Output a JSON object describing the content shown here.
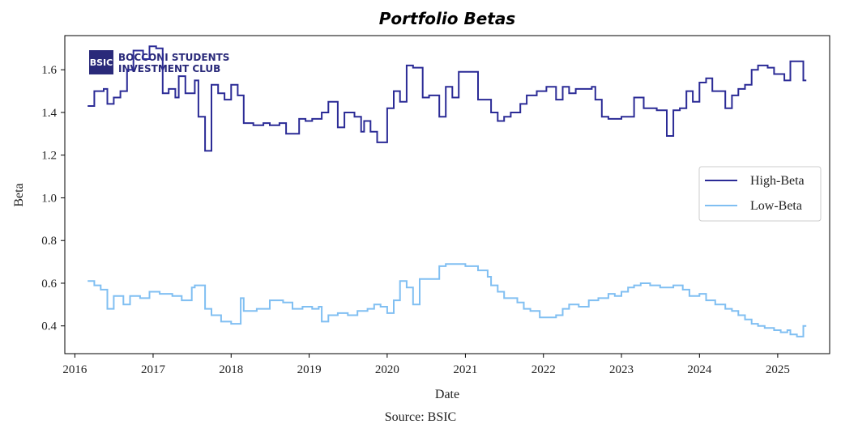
{
  "chart_data": {
    "type": "line",
    "title": "Portfolio Betas",
    "xlabel": "Date",
    "ylabel": "Beta",
    "source": "Source: BSIC",
    "logo": {
      "badge": "BSIC",
      "line1": "BOCCONI STUDENTS",
      "line2": "INVESTMENT CLUB"
    },
    "xlim": [
      "2015-11-15",
      "2025-09-01"
    ],
    "ylim": [
      0.27,
      1.76
    ],
    "x_ticks": [
      "2016",
      "2017",
      "2018",
      "2019",
      "2020",
      "2021",
      "2022",
      "2023",
      "2024",
      "2025"
    ],
    "y_ticks": [
      "0.4",
      "0.6",
      "0.8",
      "1.0",
      "1.2",
      "1.4",
      "1.6"
    ],
    "legend_position": "center-right",
    "grid": false,
    "series": [
      {
        "name": "High-Beta",
        "color": "#2b2b96",
        "points": [
          [
            "2016-03-01",
            1.43
          ],
          [
            "2016-04-01",
            1.5
          ],
          [
            "2016-05-15",
            1.51
          ],
          [
            "2016-06-01",
            1.44
          ],
          [
            "2016-07-01",
            1.47
          ],
          [
            "2016-08-01",
            1.5
          ],
          [
            "2016-09-01",
            1.6
          ],
          [
            "2016-10-01",
            1.69
          ],
          [
            "2016-11-15",
            1.65
          ],
          [
            "2016-12-15",
            1.71
          ],
          [
            "2017-01-15",
            1.7
          ],
          [
            "2017-02-15",
            1.49
          ],
          [
            "2017-03-15",
            1.51
          ],
          [
            "2017-04-15",
            1.47
          ],
          [
            "2017-05-01",
            1.57
          ],
          [
            "2017-06-01",
            1.49
          ],
          [
            "2017-07-15",
            1.55
          ],
          [
            "2017-08-01",
            1.38
          ],
          [
            "2017-09-01",
            1.22
          ],
          [
            "2017-10-01",
            1.53
          ],
          [
            "2017-11-01",
            1.49
          ],
          [
            "2017-12-01",
            1.46
          ],
          [
            "2018-01-01",
            1.53
          ],
          [
            "2018-02-01",
            1.48
          ],
          [
            "2018-03-01",
            1.35
          ],
          [
            "2018-04-15",
            1.34
          ],
          [
            "2018-06-01",
            1.35
          ],
          [
            "2018-07-01",
            1.34
          ],
          [
            "2018-08-15",
            1.35
          ],
          [
            "2018-09-15",
            1.3
          ],
          [
            "2018-11-15",
            1.37
          ],
          [
            "2018-12-15",
            1.36
          ],
          [
            "2019-01-15",
            1.37
          ],
          [
            "2019-03-01",
            1.4
          ],
          [
            "2019-04-01",
            1.45
          ],
          [
            "2019-05-15",
            1.33
          ],
          [
            "2019-06-15",
            1.4
          ],
          [
            "2019-08-01",
            1.38
          ],
          [
            "2019-09-01",
            1.31
          ],
          [
            "2019-09-15",
            1.36
          ],
          [
            "2019-10-15",
            1.31
          ],
          [
            "2019-11-15",
            1.26
          ],
          [
            "2020-01-01",
            1.42
          ],
          [
            "2020-02-01",
            1.5
          ],
          [
            "2020-03-01",
            1.45
          ],
          [
            "2020-04-01",
            1.62
          ],
          [
            "2020-05-01",
            1.61
          ],
          [
            "2020-06-15",
            1.47
          ],
          [
            "2020-07-15",
            1.48
          ],
          [
            "2020-09-01",
            1.38
          ],
          [
            "2020-10-01",
            1.52
          ],
          [
            "2020-11-01",
            1.47
          ],
          [
            "2020-12-01",
            1.59
          ],
          [
            "2021-03-01",
            1.46
          ],
          [
            "2021-05-01",
            1.4
          ],
          [
            "2021-06-01",
            1.36
          ],
          [
            "2021-07-01",
            1.38
          ],
          [
            "2021-08-01",
            1.4
          ],
          [
            "2021-09-15",
            1.44
          ],
          [
            "2021-10-15",
            1.48
          ],
          [
            "2021-12-01",
            1.5
          ],
          [
            "2022-01-15",
            1.52
          ],
          [
            "2022-03-01",
            1.46
          ],
          [
            "2022-04-01",
            1.52
          ],
          [
            "2022-05-01",
            1.49
          ],
          [
            "2022-06-01",
            1.51
          ],
          [
            "2022-08-15",
            1.52
          ],
          [
            "2022-09-01",
            1.46
          ],
          [
            "2022-10-01",
            1.38
          ],
          [
            "2022-11-01",
            1.37
          ],
          [
            "2023-01-01",
            1.38
          ],
          [
            "2023-03-01",
            1.47
          ],
          [
            "2023-04-15",
            1.42
          ],
          [
            "2023-06-15",
            1.41
          ],
          [
            "2023-08-01",
            1.29
          ],
          [
            "2023-09-01",
            1.41
          ],
          [
            "2023-10-01",
            1.42
          ],
          [
            "2023-11-01",
            1.5
          ],
          [
            "2023-12-01",
            1.45
          ],
          [
            "2024-01-01",
            1.54
          ],
          [
            "2024-02-01",
            1.56
          ],
          [
            "2024-03-01",
            1.5
          ],
          [
            "2024-05-01",
            1.42
          ],
          [
            "2024-06-01",
            1.48
          ],
          [
            "2024-07-01",
            1.51
          ],
          [
            "2024-08-01",
            1.53
          ],
          [
            "2024-09-01",
            1.6
          ],
          [
            "2024-10-01",
            1.62
          ],
          [
            "2024-11-15",
            1.61
          ],
          [
            "2024-12-15",
            1.58
          ],
          [
            "2025-02-01",
            1.55
          ],
          [
            "2025-03-01",
            1.64
          ],
          [
            "2025-05-01",
            1.55
          ],
          [
            "2025-05-15",
            1.55
          ]
        ]
      },
      {
        "name": "Low-Beta",
        "color": "#80bff2",
        "points": [
          [
            "2016-03-01",
            0.61
          ],
          [
            "2016-04-01",
            0.59
          ],
          [
            "2016-05-01",
            0.57
          ],
          [
            "2016-06-01",
            0.48
          ],
          [
            "2016-07-01",
            0.54
          ],
          [
            "2016-08-15",
            0.5
          ],
          [
            "2016-09-15",
            0.54
          ],
          [
            "2016-11-01",
            0.53
          ],
          [
            "2016-12-15",
            0.56
          ],
          [
            "2017-02-01",
            0.55
          ],
          [
            "2017-04-01",
            0.54
          ],
          [
            "2017-05-15",
            0.52
          ],
          [
            "2017-07-01",
            0.58
          ],
          [
            "2017-07-15",
            0.59
          ],
          [
            "2017-09-01",
            0.48
          ],
          [
            "2017-10-01",
            0.45
          ],
          [
            "2017-11-15",
            0.42
          ],
          [
            "2018-01-01",
            0.41
          ],
          [
            "2018-02-15",
            0.53
          ],
          [
            "2018-03-01",
            0.47
          ],
          [
            "2018-05-01",
            0.48
          ],
          [
            "2018-07-01",
            0.52
          ],
          [
            "2018-09-01",
            0.51
          ],
          [
            "2018-10-15",
            0.48
          ],
          [
            "2018-12-01",
            0.49
          ],
          [
            "2019-01-15",
            0.48
          ],
          [
            "2019-02-15",
            0.49
          ],
          [
            "2019-03-01",
            0.42
          ],
          [
            "2019-04-01",
            0.45
          ],
          [
            "2019-05-15",
            0.46
          ],
          [
            "2019-07-01",
            0.45
          ],
          [
            "2019-08-15",
            0.47
          ],
          [
            "2019-10-01",
            0.48
          ],
          [
            "2019-11-01",
            0.5
          ],
          [
            "2019-12-01",
            0.49
          ],
          [
            "2020-01-01",
            0.46
          ],
          [
            "2020-02-01",
            0.52
          ],
          [
            "2020-03-01",
            0.61
          ],
          [
            "2020-04-01",
            0.58
          ],
          [
            "2020-05-01",
            0.5
          ],
          [
            "2020-06-01",
            0.62
          ],
          [
            "2020-08-01",
            0.62
          ],
          [
            "2020-09-01",
            0.68
          ],
          [
            "2020-10-01",
            0.69
          ],
          [
            "2021-01-01",
            0.68
          ],
          [
            "2021-03-01",
            0.66
          ],
          [
            "2021-04-15",
            0.63
          ],
          [
            "2021-05-01",
            0.59
          ],
          [
            "2021-06-01",
            0.56
          ],
          [
            "2021-07-01",
            0.53
          ],
          [
            "2021-09-01",
            0.51
          ],
          [
            "2021-10-01",
            0.48
          ],
          [
            "2021-11-01",
            0.47
          ],
          [
            "2021-12-15",
            0.44
          ],
          [
            "2022-03-01",
            0.45
          ],
          [
            "2022-04-01",
            0.48
          ],
          [
            "2022-05-01",
            0.5
          ],
          [
            "2022-06-15",
            0.49
          ],
          [
            "2022-08-01",
            0.52
          ],
          [
            "2022-09-15",
            0.53
          ],
          [
            "2022-11-01",
            0.55
          ],
          [
            "2022-12-01",
            0.54
          ],
          [
            "2023-01-01",
            0.56
          ],
          [
            "2023-02-01",
            0.58
          ],
          [
            "2023-03-01",
            0.59
          ],
          [
            "2023-04-01",
            0.6
          ],
          [
            "2023-05-15",
            0.59
          ],
          [
            "2023-07-01",
            0.58
          ],
          [
            "2023-09-01",
            0.59
          ],
          [
            "2023-10-15",
            0.57
          ],
          [
            "2023-11-15",
            0.54
          ],
          [
            "2024-01-01",
            0.55
          ],
          [
            "2024-02-01",
            0.52
          ],
          [
            "2024-03-15",
            0.5
          ],
          [
            "2024-05-01",
            0.48
          ],
          [
            "2024-06-01",
            0.47
          ],
          [
            "2024-07-01",
            0.45
          ],
          [
            "2024-08-01",
            0.43
          ],
          [
            "2024-09-01",
            0.41
          ],
          [
            "2024-10-01",
            0.4
          ],
          [
            "2024-11-01",
            0.39
          ],
          [
            "2024-12-15",
            0.38
          ],
          [
            "2025-01-15",
            0.37
          ],
          [
            "2025-02-15",
            0.38
          ],
          [
            "2025-03-01",
            0.36
          ],
          [
            "2025-04-01",
            0.35
          ],
          [
            "2025-05-01",
            0.4
          ],
          [
            "2025-05-15",
            0.4
          ]
        ]
      }
    ]
  }
}
